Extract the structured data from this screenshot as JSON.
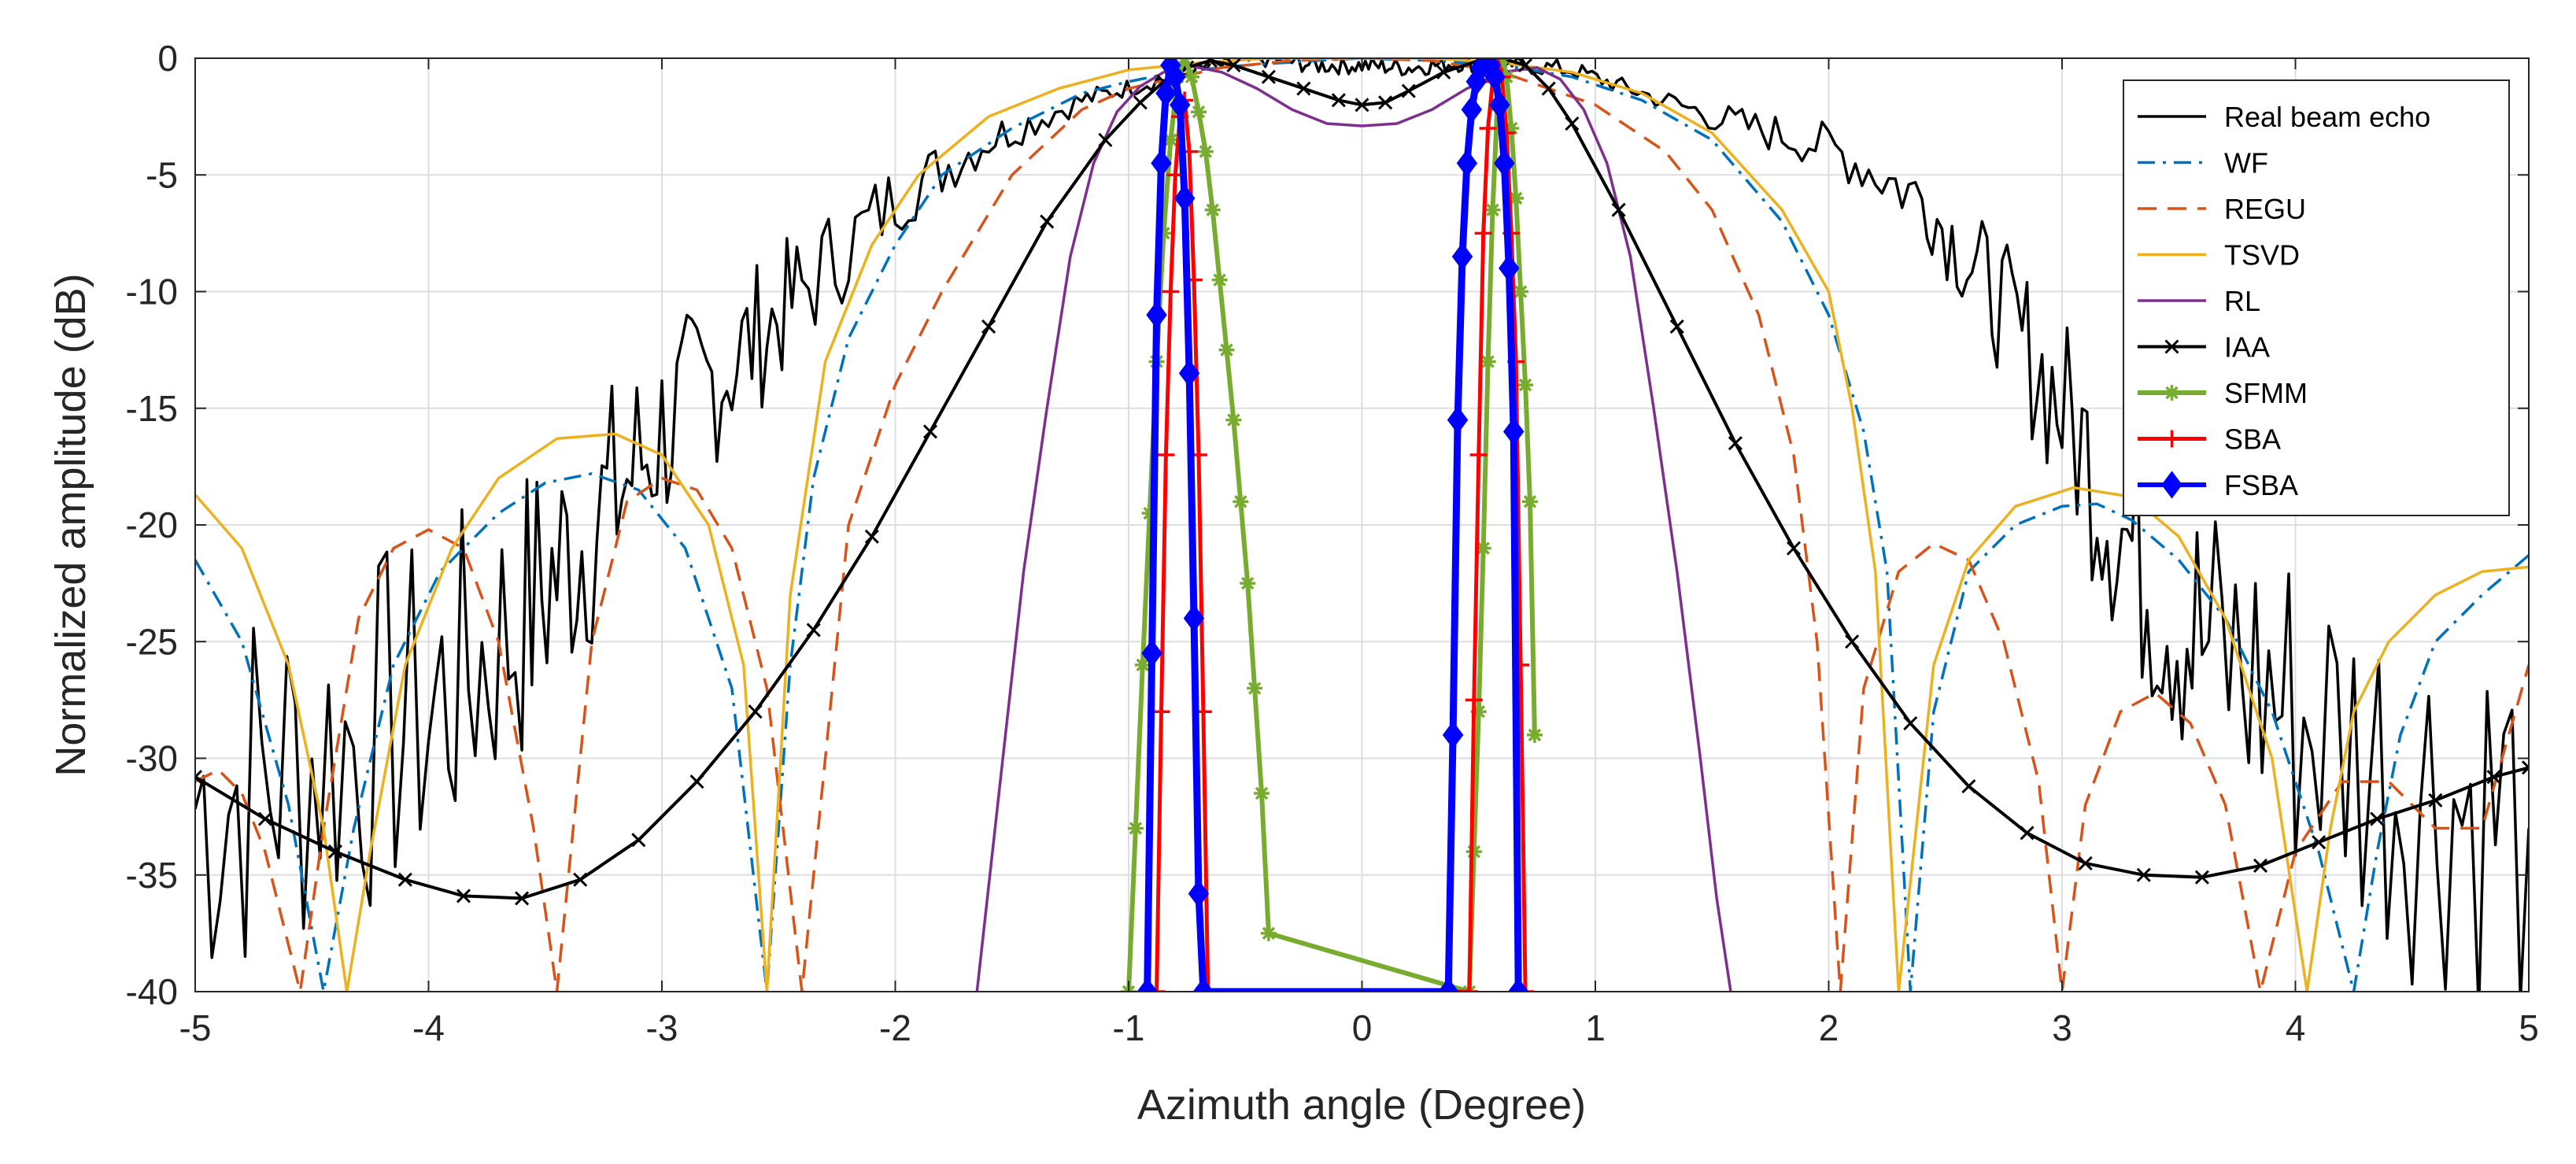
{
  "chart_data": {
    "type": "line",
    "title": "",
    "xlabel": "Azimuth angle (Degree)",
    "ylabel": "Normalized amplitude (dB)",
    "xlim": [
      -5,
      5
    ],
    "ylim": [
      -40,
      0
    ],
    "grid": true,
    "legend_position": "top-right",
    "x_ticks": [
      "-5",
      "-4",
      "-3",
      "-2",
      "-1",
      "0",
      "1",
      "2",
      "3",
      "4",
      "5"
    ],
    "y_ticks": [
      "0",
      "-5",
      "-10",
      "-15",
      "-20",
      "-25",
      "-30",
      "-35",
      "-40"
    ],
    "series": [
      {
        "name": "Real beam echo",
        "color": "#000000",
        "style": "solid",
        "marker": "none",
        "noisy": true,
        "x": [
          -5.0,
          -4.5,
          -4.0,
          -3.6,
          -3.3,
          -3.0,
          -2.7,
          -2.4,
          -2.0,
          -1.6,
          -1.2,
          -0.9,
          -0.6,
          -0.4,
          -0.2,
          0.0,
          0.2,
          0.4,
          0.6,
          0.9,
          1.2,
          1.6,
          2.0,
          2.4,
          2.7,
          3.0,
          3.3,
          3.6,
          4.0,
          4.5,
          5.0
        ],
        "y": [
          -32,
          -30,
          -28,
          -24,
          -20,
          -16,
          -13,
          -10,
          -6,
          -3.5,
          -1.8,
          -1.0,
          -0.3,
          0.0,
          -0.3,
          -0.3,
          -0.4,
          -0.2,
          -0.2,
          -0.5,
          -1.5,
          -2.8,
          -3.8,
          -6,
          -10,
          -15,
          -21,
          -25,
          -28,
          -31,
          -33
        ]
      },
      {
        "name": "WF",
        "color": "#0072BD",
        "style": "dashdot",
        "marker": "none",
        "x": [
          -5.0,
          -4.8,
          -4.6,
          -4.45,
          -4.32,
          -4.15,
          -3.95,
          -3.7,
          -3.5,
          -3.3,
          -3.1,
          -2.9,
          -2.7,
          -2.55,
          -2.45,
          -2.35,
          -2.2,
          -2.0,
          -1.8,
          -1.5,
          -1.2,
          -1.0,
          -0.8,
          -0.5,
          -0.2,
          0.0,
          0.3,
          0.6,
          0.9,
          1.2,
          1.5,
          1.8,
          2.0,
          2.15,
          2.25,
          2.35,
          2.45,
          2.6,
          2.8,
          3.0,
          3.15,
          3.3,
          3.5,
          3.7,
          3.9,
          4.1,
          4.25,
          4.35,
          4.45,
          4.6,
          4.8,
          5.0
        ],
        "y": [
          -21.5,
          -25,
          -32,
          -40,
          -33,
          -26,
          -22,
          -19.5,
          -18.2,
          -17.8,
          -18.5,
          -21,
          -27,
          -40,
          -26,
          -18,
          -12,
          -8,
          -5,
          -3,
          -1.5,
          -1.0,
          -0.6,
          -0.3,
          -0.1,
          0.0,
          -0.1,
          -0.3,
          -0.8,
          -1.8,
          -3.5,
          -7,
          -11,
          -16,
          -22,
          -40,
          -28,
          -22,
          -20,
          -19.2,
          -19.1,
          -19.8,
          -21.5,
          -24,
          -28,
          -34,
          -40,
          -34,
          -29,
          -25,
          -23,
          -21.3
        ]
      },
      {
        "name": "REGU",
        "color": "#D95319",
        "style": "dashed",
        "marker": "none",
        "x": [
          -5.0,
          -4.9,
          -4.8,
          -4.7,
          -4.55,
          -4.45,
          -4.3,
          -4.15,
          -4.0,
          -3.85,
          -3.7,
          -3.55,
          -3.45,
          -3.3,
          -3.15,
          -3.0,
          -2.85,
          -2.7,
          -2.55,
          -2.4,
          -2.3,
          -2.2,
          -2.0,
          -1.8,
          -1.5,
          -1.2,
          -1.0,
          -0.6,
          -0.3,
          0.0,
          0.3,
          0.6,
          1.0,
          1.3,
          1.5,
          1.7,
          1.85,
          1.95,
          2.05,
          2.15,
          2.3,
          2.45,
          2.6,
          2.75,
          2.9,
          3.0,
          3.1,
          3.25,
          3.4,
          3.55,
          3.7,
          3.85,
          4.0,
          4.2,
          4.4,
          4.6,
          4.8,
          5.0
        ],
        "y": [
          -31,
          -30.5,
          -31.5,
          -34,
          -40,
          -33,
          -24,
          -21,
          -20.2,
          -21,
          -25,
          -33,
          -40,
          -25,
          -19,
          -18,
          -18.5,
          -21,
          -27,
          -40,
          -30,
          -20,
          -14,
          -10,
          -5,
          -2.2,
          -1.3,
          -0.4,
          -0.1,
          0.0,
          -0.1,
          -0.6,
          -2.0,
          -4.0,
          -6.5,
          -11,
          -17,
          -25,
          -40,
          -27,
          -22,
          -20.8,
          -21.5,
          -25,
          -31,
          -40,
          -32,
          -28,
          -27.2,
          -28.5,
          -32,
          -40,
          -34,
          -31,
          -31,
          -33,
          -33,
          -26
        ]
      },
      {
        "name": "TSVD",
        "color": "#EDB120",
        "style": "solid",
        "marker": "none",
        "x": [
          -5.0,
          -4.8,
          -4.6,
          -4.45,
          -4.35,
          -4.25,
          -4.1,
          -3.9,
          -3.7,
          -3.45,
          -3.2,
          -3.0,
          -2.8,
          -2.65,
          -2.55,
          -2.45,
          -2.3,
          -2.1,
          -1.9,
          -1.6,
          -1.3,
          -1.0,
          -0.7,
          -0.4,
          -0.1,
          0.0,
          0.3,
          0.6,
          0.9,
          1.2,
          1.5,
          1.8,
          2.0,
          2.1,
          2.2,
          2.3,
          2.45,
          2.6,
          2.8,
          3.05,
          3.3,
          3.5,
          3.7,
          3.9,
          4.05,
          4.15,
          4.25,
          4.4,
          4.6,
          4.8,
          5.0
        ],
        "y": [
          -18.7,
          -21,
          -26,
          -33,
          -40,
          -34,
          -26,
          -21,
          -18,
          -16.3,
          -16.1,
          -17,
          -20,
          -26,
          -40,
          -23,
          -13,
          -8,
          -5,
          -2.5,
          -1.3,
          -0.5,
          -0.2,
          0.0,
          0.0,
          0.0,
          0.0,
          -0.2,
          -0.6,
          -1.5,
          -3.2,
          -6.5,
          -10,
          -15,
          -22,
          -40,
          -26,
          -21.5,
          -19.2,
          -18.4,
          -18.8,
          -20.5,
          -24,
          -30,
          -40,
          -33,
          -28,
          -25,
          -23,
          -22,
          -21.8
        ]
      },
      {
        "name": "RL",
        "color": "#7E2F8E",
        "style": "solid",
        "marker": "none",
        "x": [
          -1.65,
          -1.55,
          -1.45,
          -1.35,
          -1.25,
          -1.15,
          -1.05,
          -0.95,
          -0.85,
          -0.75,
          -0.6,
          -0.45,
          -0.3,
          -0.15,
          0.0,
          0.15,
          0.3,
          0.45,
          0.6,
          0.75,
          0.85,
          0.95,
          1.05,
          1.15,
          1.25,
          1.35,
          1.45,
          1.52,
          1.58
        ],
        "y": [
          -40,
          -31,
          -22,
          -15,
          -8.5,
          -4.5,
          -2.3,
          -1.2,
          -0.6,
          -0.3,
          -0.6,
          -1.3,
          -2.2,
          -2.8,
          -2.9,
          -2.8,
          -2.2,
          -1.3,
          -0.6,
          -0.4,
          -0.9,
          -2.2,
          -4.5,
          -8.5,
          -15,
          -22,
          -30,
          -36,
          -40
        ]
      },
      {
        "name": "IAA",
        "color": "#000000",
        "style": "solid",
        "marker": "x",
        "x": [
          -5.0,
          -4.7,
          -4.4,
          -4.1,
          -3.85,
          -3.6,
          -3.35,
          -3.1,
          -2.85,
          -2.6,
          -2.35,
          -2.1,
          -1.85,
          -1.6,
          -1.35,
          -1.1,
          -0.95,
          -0.85,
          -0.75,
          -0.65,
          -0.55,
          -0.4,
          -0.25,
          -0.1,
          0.0,
          0.1,
          0.2,
          0.35,
          0.5,
          0.6,
          0.7,
          0.8,
          0.9,
          1.1,
          1.35,
          1.6,
          1.85,
          2.1,
          2.35,
          2.6,
          2.85,
          3.1,
          3.35,
          3.6,
          3.85,
          4.1,
          4.35,
          4.6,
          4.85,
          5.0
        ],
        "y": [
          -30.8,
          -32.6,
          -34.0,
          -35.2,
          -35.9,
          -36.0,
          -35.2,
          -33.5,
          -31.0,
          -28.0,
          -24.5,
          -20.5,
          -16.0,
          -11.5,
          -7.0,
          -3.5,
          -1.9,
          -1.0,
          -0.4,
          -0.1,
          -0.3,
          -0.8,
          -1.3,
          -1.8,
          -2.0,
          -1.9,
          -1.4,
          -0.6,
          -0.1,
          0.0,
          -0.3,
          -1.3,
          -2.8,
          -6.5,
          -11.5,
          -16.5,
          -21.0,
          -25.0,
          -28.5,
          -31.2,
          -33.2,
          -34.5,
          -35.0,
          -35.1,
          -34.6,
          -33.6,
          -32.6,
          -31.8,
          -30.8,
          -30.4
        ]
      },
      {
        "name": "SFMM",
        "color": "#77AC30",
        "style": "solid",
        "marker": "asterisk",
        "x": [
          -1.0,
          -0.97,
          -0.94,
          -0.91,
          -0.88,
          -0.85,
          -0.82,
          -0.79,
          -0.76,
          -0.73,
          -0.7,
          -0.67,
          -0.64,
          -0.61,
          -0.58,
          -0.55,
          -0.52,
          -0.49,
          -0.46,
          -0.43,
          -0.4,
          0.46,
          0.48,
          0.5,
          0.52,
          0.54,
          0.56,
          0.58,
          0.6,
          0.62,
          0.64,
          0.66,
          0.68,
          0.7,
          0.72,
          0.74
        ],
        "y": [
          -40,
          -33,
          -26,
          -19.5,
          -13,
          -7.5,
          -3.5,
          -0.8,
          0.0,
          -0.8,
          -2.3,
          -4.0,
          -6.5,
          -9.5,
          -12.5,
          -15.5,
          -19.0,
          -22.5,
          -27.0,
          -31.5,
          -37.5,
          -40,
          -34,
          -28,
          -21,
          -13,
          -6.5,
          -2.0,
          0.0,
          -0.8,
          -3.0,
          -6.0,
          -10.0,
          -14.0,
          -19.0,
          -29.0
        ]
      },
      {
        "name": "SBA",
        "color": "#FF0000",
        "style": "solid",
        "marker": "plus",
        "x": [
          -0.88,
          -0.86,
          -0.84,
          -0.82,
          -0.8,
          -0.78,
          -0.76,
          -0.74,
          -0.72,
          -0.7,
          -0.68,
          -0.66,
          0.46,
          0.48,
          0.5,
          0.52,
          0.54,
          0.56,
          0.58,
          0.6,
          0.62,
          0.64,
          0.66,
          0.68,
          0.7
        ],
        "y": [
          -40,
          -28,
          -17,
          -10,
          -5.0,
          -2.5,
          -1.8,
          -4.0,
          -9.5,
          -17.0,
          -28.0,
          -40,
          -40,
          -27.5,
          -17.0,
          -7.5,
          -3.0,
          -1.0,
          0.0,
          -0.8,
          -3.2,
          -7.5,
          -13.0,
          -26.0,
          -40
        ]
      },
      {
        "name": "FSBA",
        "color": "#0000FF",
        "style": "solid",
        "marker": "diamond",
        "x": [
          -0.92,
          -0.9,
          -0.88,
          -0.86,
          -0.84,
          -0.82,
          -0.8,
          -0.78,
          -0.76,
          -0.74,
          -0.72,
          -0.7,
          -0.68,
          0.37,
          0.39,
          0.41,
          0.43,
          0.45,
          0.47,
          0.49,
          0.51,
          0.53,
          0.55,
          0.57,
          0.59,
          0.61,
          0.63,
          0.65,
          0.67
        ],
        "y": [
          -40,
          -25.5,
          -11.0,
          -4.5,
          -1.5,
          -0.3,
          -0.8,
          -2.0,
          -6.0,
          -13.5,
          -24.0,
          -35.8,
          -40,
          -40,
          -29.0,
          -15.5,
          -8.5,
          -4.5,
          -2.2,
          -1.0,
          -0.4,
          0.0,
          -0.3,
          -0.8,
          -2.0,
          -4.5,
          -9.0,
          -16.0,
          -40
        ]
      }
    ]
  }
}
